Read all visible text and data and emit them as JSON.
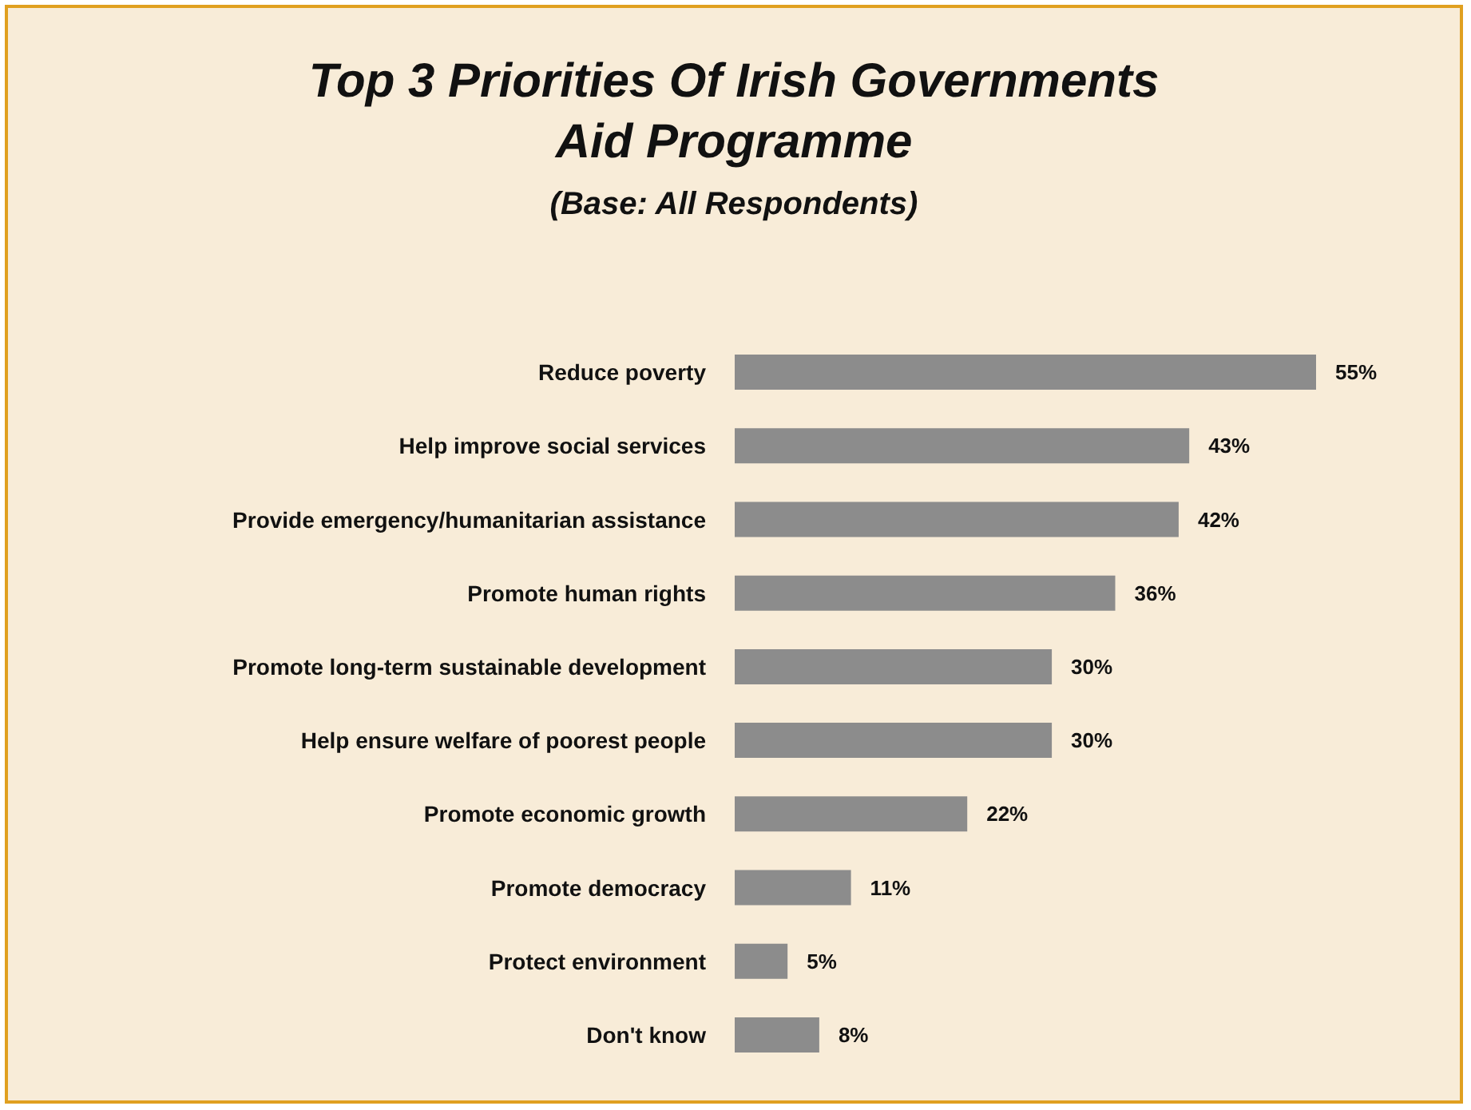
{
  "chart_data": {
    "type": "bar",
    "orientation": "horizontal",
    "title": "Top 3 Priorities Of Irish Governments\nAid Programme",
    "subtitle": "(Base: All Respondents)",
    "categories": [
      "Reduce poverty",
      "Help improve social services",
      "Provide emergency/humanitarian assistance",
      "Promote human rights",
      "Promote long-term sustainable development",
      "Help ensure welfare of poorest people",
      "Promote economic growth",
      "Promote democracy",
      "Protect environment",
      "Don't know"
    ],
    "values": [
      55,
      43,
      42,
      36,
      30,
      30,
      22,
      11,
      5,
      8
    ],
    "value_labels": [
      "55%",
      "43%",
      "42%",
      "36%",
      "30%",
      "30%",
      "22%",
      "11%",
      "5%",
      "8%"
    ],
    "color": "#8c8c8c"
  }
}
